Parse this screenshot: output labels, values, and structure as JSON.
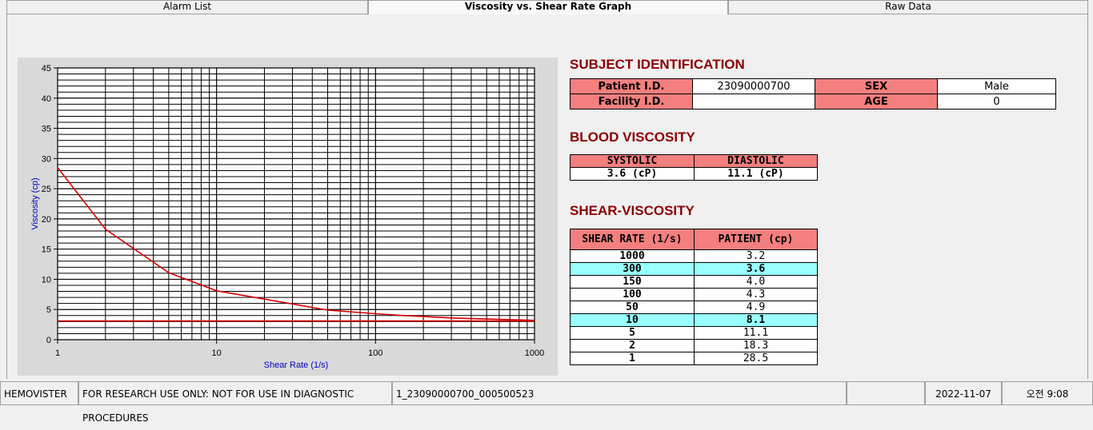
{
  "tabs": [
    "Alarm List",
    "Viscosity vs. Shear Rate Graph",
    "Raw Data"
  ],
  "chart_data": {
    "type": "line",
    "x_label": "Shear Rate (1/s)",
    "y_label": "Viscosity (cp)",
    "log_x": true,
    "xlim": [
      1,
      1000
    ],
    "xticks": [
      1,
      10,
      100,
      1000
    ],
    "x_minor_grid": [
      2,
      3,
      4,
      5,
      6,
      7,
      8,
      9,
      20,
      30,
      40,
      50,
      60,
      70,
      80,
      90,
      200,
      300,
      400,
      500,
      600,
      700,
      800,
      900
    ],
    "ylim": [
      0,
      45
    ],
    "yticks": [
      0,
      5,
      10,
      15,
      20,
      25,
      30,
      35,
      40,
      45
    ],
    "y_minor_grid": [
      1,
      2,
      3,
      4,
      6,
      7,
      8,
      9,
      11,
      12,
      13,
      14,
      16,
      17,
      18,
      19,
      21,
      22,
      23,
      24,
      26,
      27,
      28,
      29,
      31,
      32,
      33,
      34,
      36,
      37,
      38,
      39,
      41,
      42,
      43,
      44
    ],
    "grid": true,
    "series": [
      {
        "color": "#d40000",
        "x": [
          1,
          2,
          5,
          10,
          50,
          100,
          150,
          300,
          1000
        ],
        "values": [
          28.5,
          18.3,
          11.1,
          8.1,
          4.9,
          4.3,
          4.0,
          3.6,
          3.2
        ]
      },
      {
        "color": "#d40000",
        "x": [
          1,
          1000
        ],
        "values": [
          3.1,
          3.1
        ]
      }
    ]
  },
  "subject": {
    "title": "SUBJECT IDENTIFICATION",
    "patient_id_label": "Patient I.D.",
    "patient_id": "23090000700",
    "sex_label": "SEX",
    "sex": "Male",
    "facility_label": "Facility I.D.",
    "age_label": "AGE",
    "age": "0"
  },
  "blood": {
    "title": "BLOOD VISCOSITY",
    "headers": [
      "SYSTOLIC",
      "DIASTOLIC"
    ],
    "values": [
      "3.6 (cP)",
      "11.1 (cP)"
    ]
  },
  "shear": {
    "title": "SHEAR-VISCOSITY",
    "headers": [
      "SHEAR RATE (1/s)",
      "PATIENT (cp)"
    ],
    "highlight_rows": [
      1,
      5
    ],
    "rows": [
      [
        "1000",
        "3.2"
      ],
      [
        "300",
        "3.6"
      ],
      [
        "150",
        "4.0"
      ],
      [
        "100",
        "4.3"
      ],
      [
        "50",
        "4.9"
      ],
      [
        "10",
        "8.1"
      ],
      [
        "5",
        "11.1"
      ],
      [
        "2",
        "18.3"
      ],
      [
        "1",
        "28.5"
      ]
    ]
  },
  "status": [
    "HEMOVISTER",
    "FOR RESEARCH USE ONLY: NOT FOR USE IN DIAGNOSTIC PROCEDURES",
    "1_23090000700_000500523",
    "2022-11-07",
    "오전 9:08"
  ]
}
